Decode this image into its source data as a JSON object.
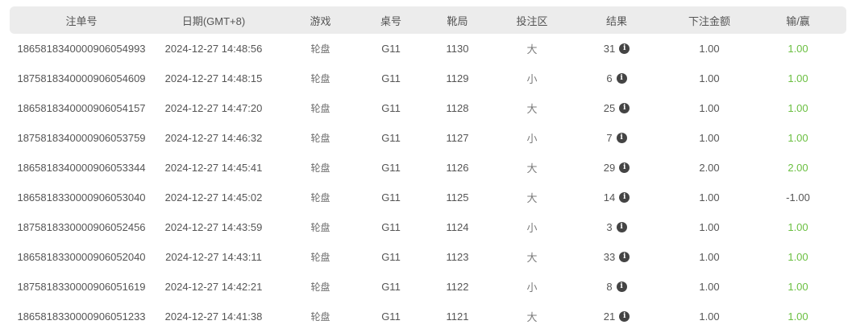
{
  "colors": {
    "win": "#6abf40",
    "header_bg": "#ececec",
    "header_text": "#555555",
    "body_text": "#555555",
    "info_icon_bg": "#444444"
  },
  "table": {
    "columns": [
      {
        "key": "order_id",
        "label": "注单号"
      },
      {
        "key": "datetime",
        "label": "日期(GMT+8)"
      },
      {
        "key": "game",
        "label": "游戏"
      },
      {
        "key": "table_no",
        "label": "桌号"
      },
      {
        "key": "shoe_round",
        "label": "靴局"
      },
      {
        "key": "bet_area",
        "label": "投注区"
      },
      {
        "key": "result",
        "label": "结果"
      },
      {
        "key": "bet_amount",
        "label": "下注金额"
      },
      {
        "key": "win_loss",
        "label": "输/赢"
      }
    ],
    "result_icon": "info-icon",
    "result_icon_glyph": "i",
    "rows": [
      {
        "order_id": "1865818340000906054993",
        "datetime": "2024-12-27 14:48:56",
        "game": "轮盘",
        "table_no": "G11",
        "shoe_round": "1130",
        "bet_area": "大",
        "result": "31",
        "bet_amount": "1.00",
        "win_loss": "1.00"
      },
      {
        "order_id": "1875818340000906054609",
        "datetime": "2024-12-27 14:48:15",
        "game": "轮盘",
        "table_no": "G11",
        "shoe_round": "1129",
        "bet_area": "小",
        "result": "6",
        "bet_amount": "1.00",
        "win_loss": "1.00"
      },
      {
        "order_id": "1865818340000906054157",
        "datetime": "2024-12-27 14:47:20",
        "game": "轮盘",
        "table_no": "G11",
        "shoe_round": "1128",
        "bet_area": "大",
        "result": "25",
        "bet_amount": "1.00",
        "win_loss": "1.00"
      },
      {
        "order_id": "1875818340000906053759",
        "datetime": "2024-12-27 14:46:32",
        "game": "轮盘",
        "table_no": "G11",
        "shoe_round": "1127",
        "bet_area": "小",
        "result": "7",
        "bet_amount": "1.00",
        "win_loss": "1.00"
      },
      {
        "order_id": "1865818340000906053344",
        "datetime": "2024-12-27 14:45:41",
        "game": "轮盘",
        "table_no": "G11",
        "shoe_round": "1126",
        "bet_area": "大",
        "result": "29",
        "bet_amount": "2.00",
        "win_loss": "2.00"
      },
      {
        "order_id": "1865818330000906053040",
        "datetime": "2024-12-27 14:45:02",
        "game": "轮盘",
        "table_no": "G11",
        "shoe_round": "1125",
        "bet_area": "大",
        "result": "14",
        "bet_amount": "1.00",
        "win_loss": "-1.00"
      },
      {
        "order_id": "1875818330000906052456",
        "datetime": "2024-12-27 14:43:59",
        "game": "轮盘",
        "table_no": "G11",
        "shoe_round": "1124",
        "bet_area": "小",
        "result": "3",
        "bet_amount": "1.00",
        "win_loss": "1.00"
      },
      {
        "order_id": "1865818330000906052040",
        "datetime": "2024-12-27 14:43:11",
        "game": "轮盘",
        "table_no": "G11",
        "shoe_round": "1123",
        "bet_area": "大",
        "result": "33",
        "bet_amount": "1.00",
        "win_loss": "1.00"
      },
      {
        "order_id": "1875818330000906051619",
        "datetime": "2024-12-27 14:42:21",
        "game": "轮盘",
        "table_no": "G11",
        "shoe_round": "1122",
        "bet_area": "小",
        "result": "8",
        "bet_amount": "1.00",
        "win_loss": "1.00"
      },
      {
        "order_id": "1865818330000906051233",
        "datetime": "2024-12-27 14:41:38",
        "game": "轮盘",
        "table_no": "G11",
        "shoe_round": "1121",
        "bet_area": "大",
        "result": "21",
        "bet_amount": "1.00",
        "win_loss": "1.00"
      }
    ]
  }
}
